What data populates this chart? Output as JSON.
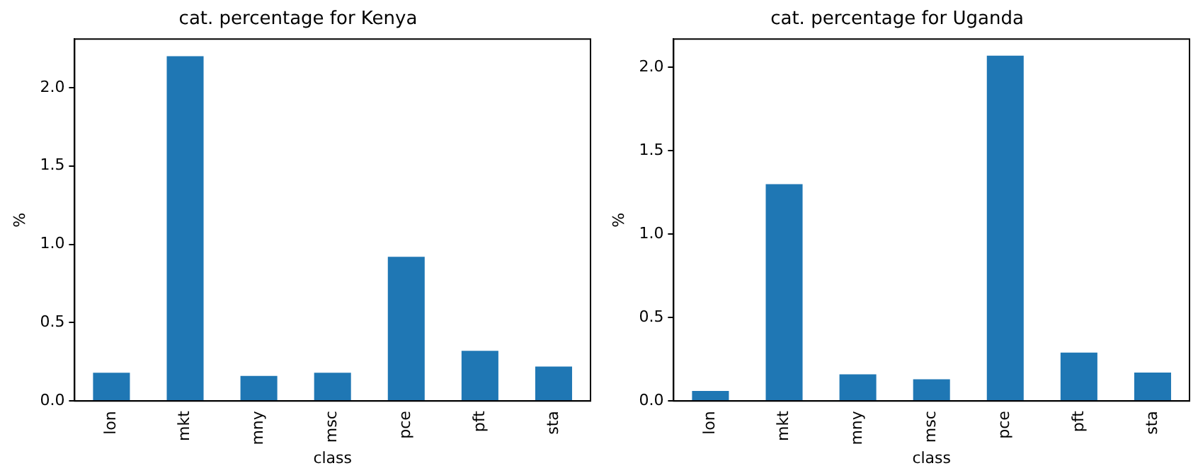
{
  "chart_data": [
    {
      "type": "bar",
      "title": "cat. percentage for Kenya",
      "xlabel": "class",
      "ylabel": "%",
      "categories": [
        "lon",
        "mkt",
        "mny",
        "msc",
        "pce",
        "pft",
        "sta"
      ],
      "values": [
        0.18,
        2.2,
        0.16,
        0.18,
        0.92,
        0.32,
        0.22
      ],
      "color": "#1f77b4",
      "ylim": [
        0,
        2.31
      ],
      "yticks": [
        {
          "value": 0,
          "label": "0.0"
        },
        {
          "value": 0.5,
          "label": "0.5"
        },
        {
          "value": 1,
          "label": "1.0"
        },
        {
          "value": 1.5,
          "label": "1.5"
        },
        {
          "value": 2,
          "label": "2.0"
        }
      ],
      "grid": false,
      "legend": false
    },
    {
      "type": "bar",
      "title": "cat. percentage for Uganda",
      "xlabel": "class",
      "ylabel": "%",
      "categories": [
        "lon",
        "mkt",
        "mny",
        "msc",
        "pce",
        "pft",
        "sta"
      ],
      "values": [
        0.06,
        1.3,
        0.16,
        0.13,
        2.07,
        0.29,
        0.17
      ],
      "color": "#1f77b4",
      "ylim": [
        0,
        2.17
      ],
      "yticks": [
        {
          "value": 0,
          "label": "0.0"
        },
        {
          "value": 0.5,
          "label": "0.5"
        },
        {
          "value": 1,
          "label": "1.0"
        },
        {
          "value": 1.5,
          "label": "1.5"
        },
        {
          "value": 2,
          "label": "2.0"
        }
      ],
      "grid": false,
      "legend": false
    }
  ]
}
